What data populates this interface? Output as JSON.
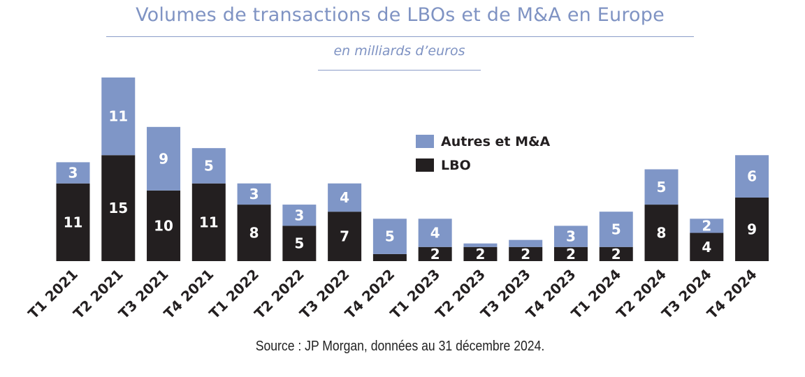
{
  "chart_data": {
    "type": "bar",
    "stacked": true,
    "title": "Volumes de transactions de LBOs et de M&A en Europe",
    "subtitle": "en milliards d’euros",
    "source": "Source : JP Morgan, données au 31 décembre 2024.",
    "categories": [
      "T1 2021",
      "T2 2021",
      "T3 2021",
      "T4 2021",
      "T1 2022",
      "T2 2022",
      "T3 2022",
      "T4 2022",
      "T1 2023",
      "T2 2023",
      "T3 2023",
      "T4 2023",
      "T1 2024",
      "T2 2024",
      "T3 2024",
      "T4 2024"
    ],
    "series": [
      {
        "name": "LBO",
        "color": "#231f20",
        "values": [
          11,
          15,
          10,
          11,
          8,
          5,
          7,
          1,
          2,
          2,
          2,
          2,
          2,
          8,
          4,
          9
        ]
      },
      {
        "name": "Autres et M&A",
        "color": "#7f96c7",
        "values": [
          3,
          11,
          9,
          5,
          3,
          3,
          4,
          5,
          4,
          0.5,
          1,
          3,
          5,
          5,
          2,
          6
        ]
      }
    ],
    "ylim": [
      0,
      26
    ],
    "grid": false,
    "axes_visible": false,
    "legend_placement": "top-center"
  }
}
